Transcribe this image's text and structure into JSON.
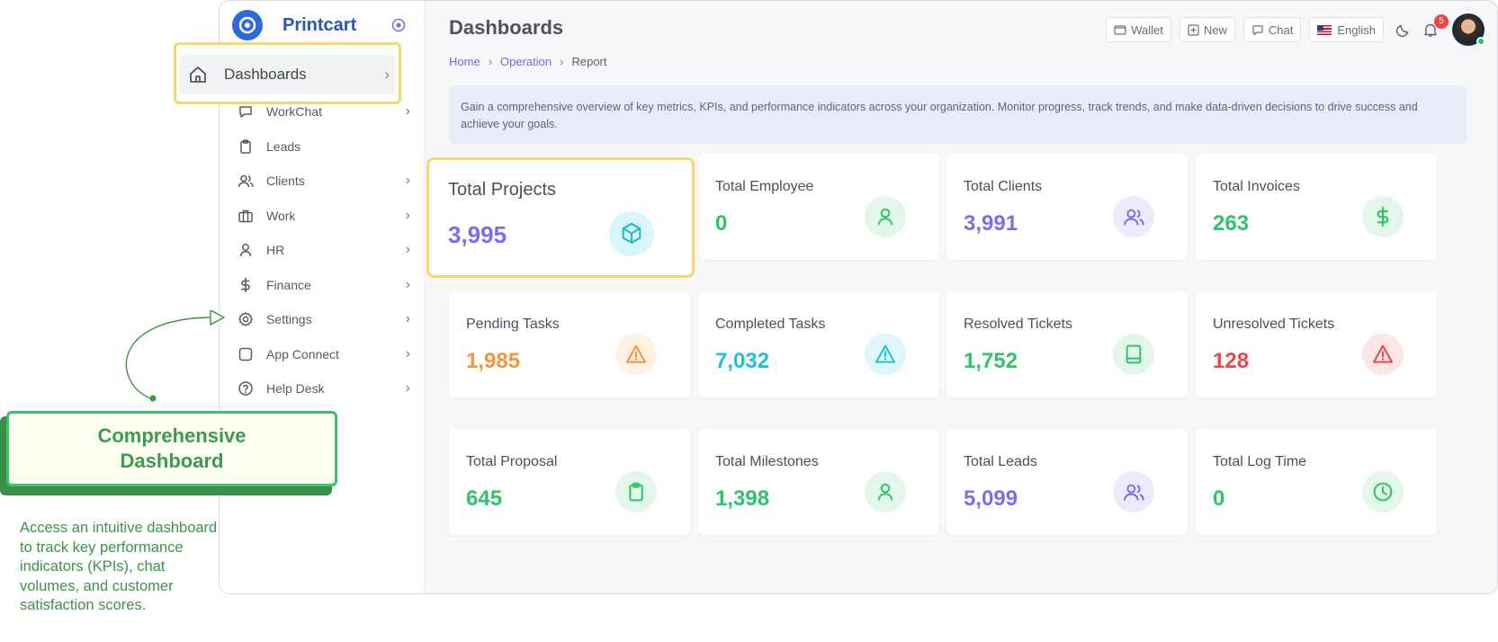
{
  "brand": {
    "name": "Printcart"
  },
  "sidebar": {
    "items": [
      {
        "label": "WorkChat",
        "icon": "chat-bubble-icon",
        "chevron": "›"
      },
      {
        "label": "Leads",
        "icon": "clipboard-icon",
        "chevron": ""
      },
      {
        "label": "Clients",
        "icon": "users-icon",
        "chevron": "›"
      },
      {
        "label": "Work",
        "icon": "briefcase-icon",
        "chevron": "›"
      },
      {
        "label": "HR",
        "icon": "user-icon",
        "chevron": "›"
      },
      {
        "label": "Finance",
        "icon": "dollar-icon",
        "chevron": "›"
      },
      {
        "label": "Settings",
        "icon": "gear-icon",
        "chevron": "›"
      },
      {
        "label": "App Connect",
        "icon": "square-icon",
        "chevron": "›"
      },
      {
        "label": "Help Desk",
        "icon": "help-circle-icon",
        "chevron": "›"
      }
    ]
  },
  "highlight": {
    "dashboards_label": "Dashboards",
    "chevron": "›"
  },
  "header": {
    "title": "Dashboards",
    "breadcrumb": {
      "home": "Home",
      "operation": "Operation",
      "current": "Report",
      "sep": "›"
    },
    "wallet": "Wallet",
    "new": "New",
    "chat": "Chat",
    "language": "English",
    "notifications": "5"
  },
  "info": "Gain a comprehensive overview of key metrics, KPIs, and performance indicators across your organization. Monitor progress, track trends, and make data-driven decisions to drive success and achieve your goals.",
  "cards": [
    {
      "title": "Total Projects",
      "value": "3,995",
      "color": "#7c6cf0",
      "icon": "cube-icon"
    },
    {
      "title": "Total Employee",
      "value": "0",
      "color": "#2fc46a",
      "icon": "user-icon"
    },
    {
      "title": "Total Clients",
      "value": "3,991",
      "color": "#7c6cf0",
      "icon": "users-icon"
    },
    {
      "title": "Total Invoices",
      "value": "263",
      "color": "#2fc46a",
      "icon": "dollar-icon"
    },
    {
      "title": "Pending Tasks",
      "value": "1,985",
      "color": "#f5953a",
      "icon": "warning-icon"
    },
    {
      "title": "Completed Tasks",
      "value": "7,032",
      "color": "#1cc2dc",
      "icon": "warning-icon"
    },
    {
      "title": "Resolved Tickets",
      "value": "1,752",
      "color": "#2fc46a",
      "icon": "book-icon"
    },
    {
      "title": "Unresolved Tickets",
      "value": "128",
      "color": "#e5484d",
      "icon": "warning-icon"
    },
    {
      "title": "Total Proposal",
      "value": "645",
      "color": "#2fc46a",
      "icon": "clipboard-icon"
    },
    {
      "title": "Total Milestones",
      "value": "1,398",
      "color": "#2fc46a",
      "icon": "user-icon"
    },
    {
      "title": "Total Leads",
      "value": "5,099",
      "color": "#7c6cf0",
      "icon": "users-icon"
    },
    {
      "title": "Total Log Time",
      "value": "0",
      "color": "#2fc46a",
      "icon": "clock-icon"
    }
  ],
  "promo": {
    "heading": "Comprehensive Dashboard",
    "description": "Access an intuitive dashboard to track key performance indicators (KPIs), chat volumes, and customer satisfaction scores."
  }
}
